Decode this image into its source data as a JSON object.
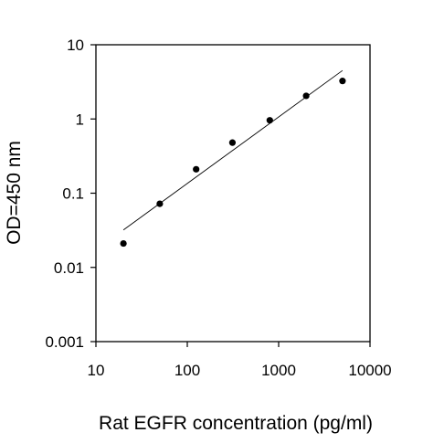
{
  "chart_data": {
    "type": "scatter",
    "title": "",
    "xlabel": "Rat EGFR concentration (pg/ml)",
    "ylabel": "OD=450 nm",
    "x_scale": "log",
    "y_scale": "log",
    "xlim": [
      10,
      10000
    ],
    "ylim": [
      0.001,
      10
    ],
    "x_ticks": [
      10,
      100,
      1000,
      10000
    ],
    "x_tick_labels": [
      "10",
      "100",
      "1000",
      "10000"
    ],
    "y_ticks": [
      0.001,
      0.01,
      0.1,
      1,
      10
    ],
    "y_tick_labels": [
      "0.001",
      "0.01",
      "0.1",
      "1",
      "10"
    ],
    "grid": false,
    "legend": "none",
    "series": [
      {
        "points": [
          {
            "x": 20,
            "y": 0.021
          },
          {
            "x": 50,
            "y": 0.072
          },
          {
            "x": 125,
            "y": 0.21
          },
          {
            "x": 312,
            "y": 0.48
          },
          {
            "x": 800,
            "y": 0.96
          },
          {
            "x": 2000,
            "y": 2.05
          },
          {
            "x": 5000,
            "y": 3.25
          }
        ],
        "color": "#000000"
      }
    ],
    "fit_line": {
      "type": "linear-loglog",
      "from": {
        "x": 20,
        "y": 0.032
      },
      "to": {
        "x": 5000,
        "y": 4.5
      },
      "color": "#000000"
    }
  }
}
